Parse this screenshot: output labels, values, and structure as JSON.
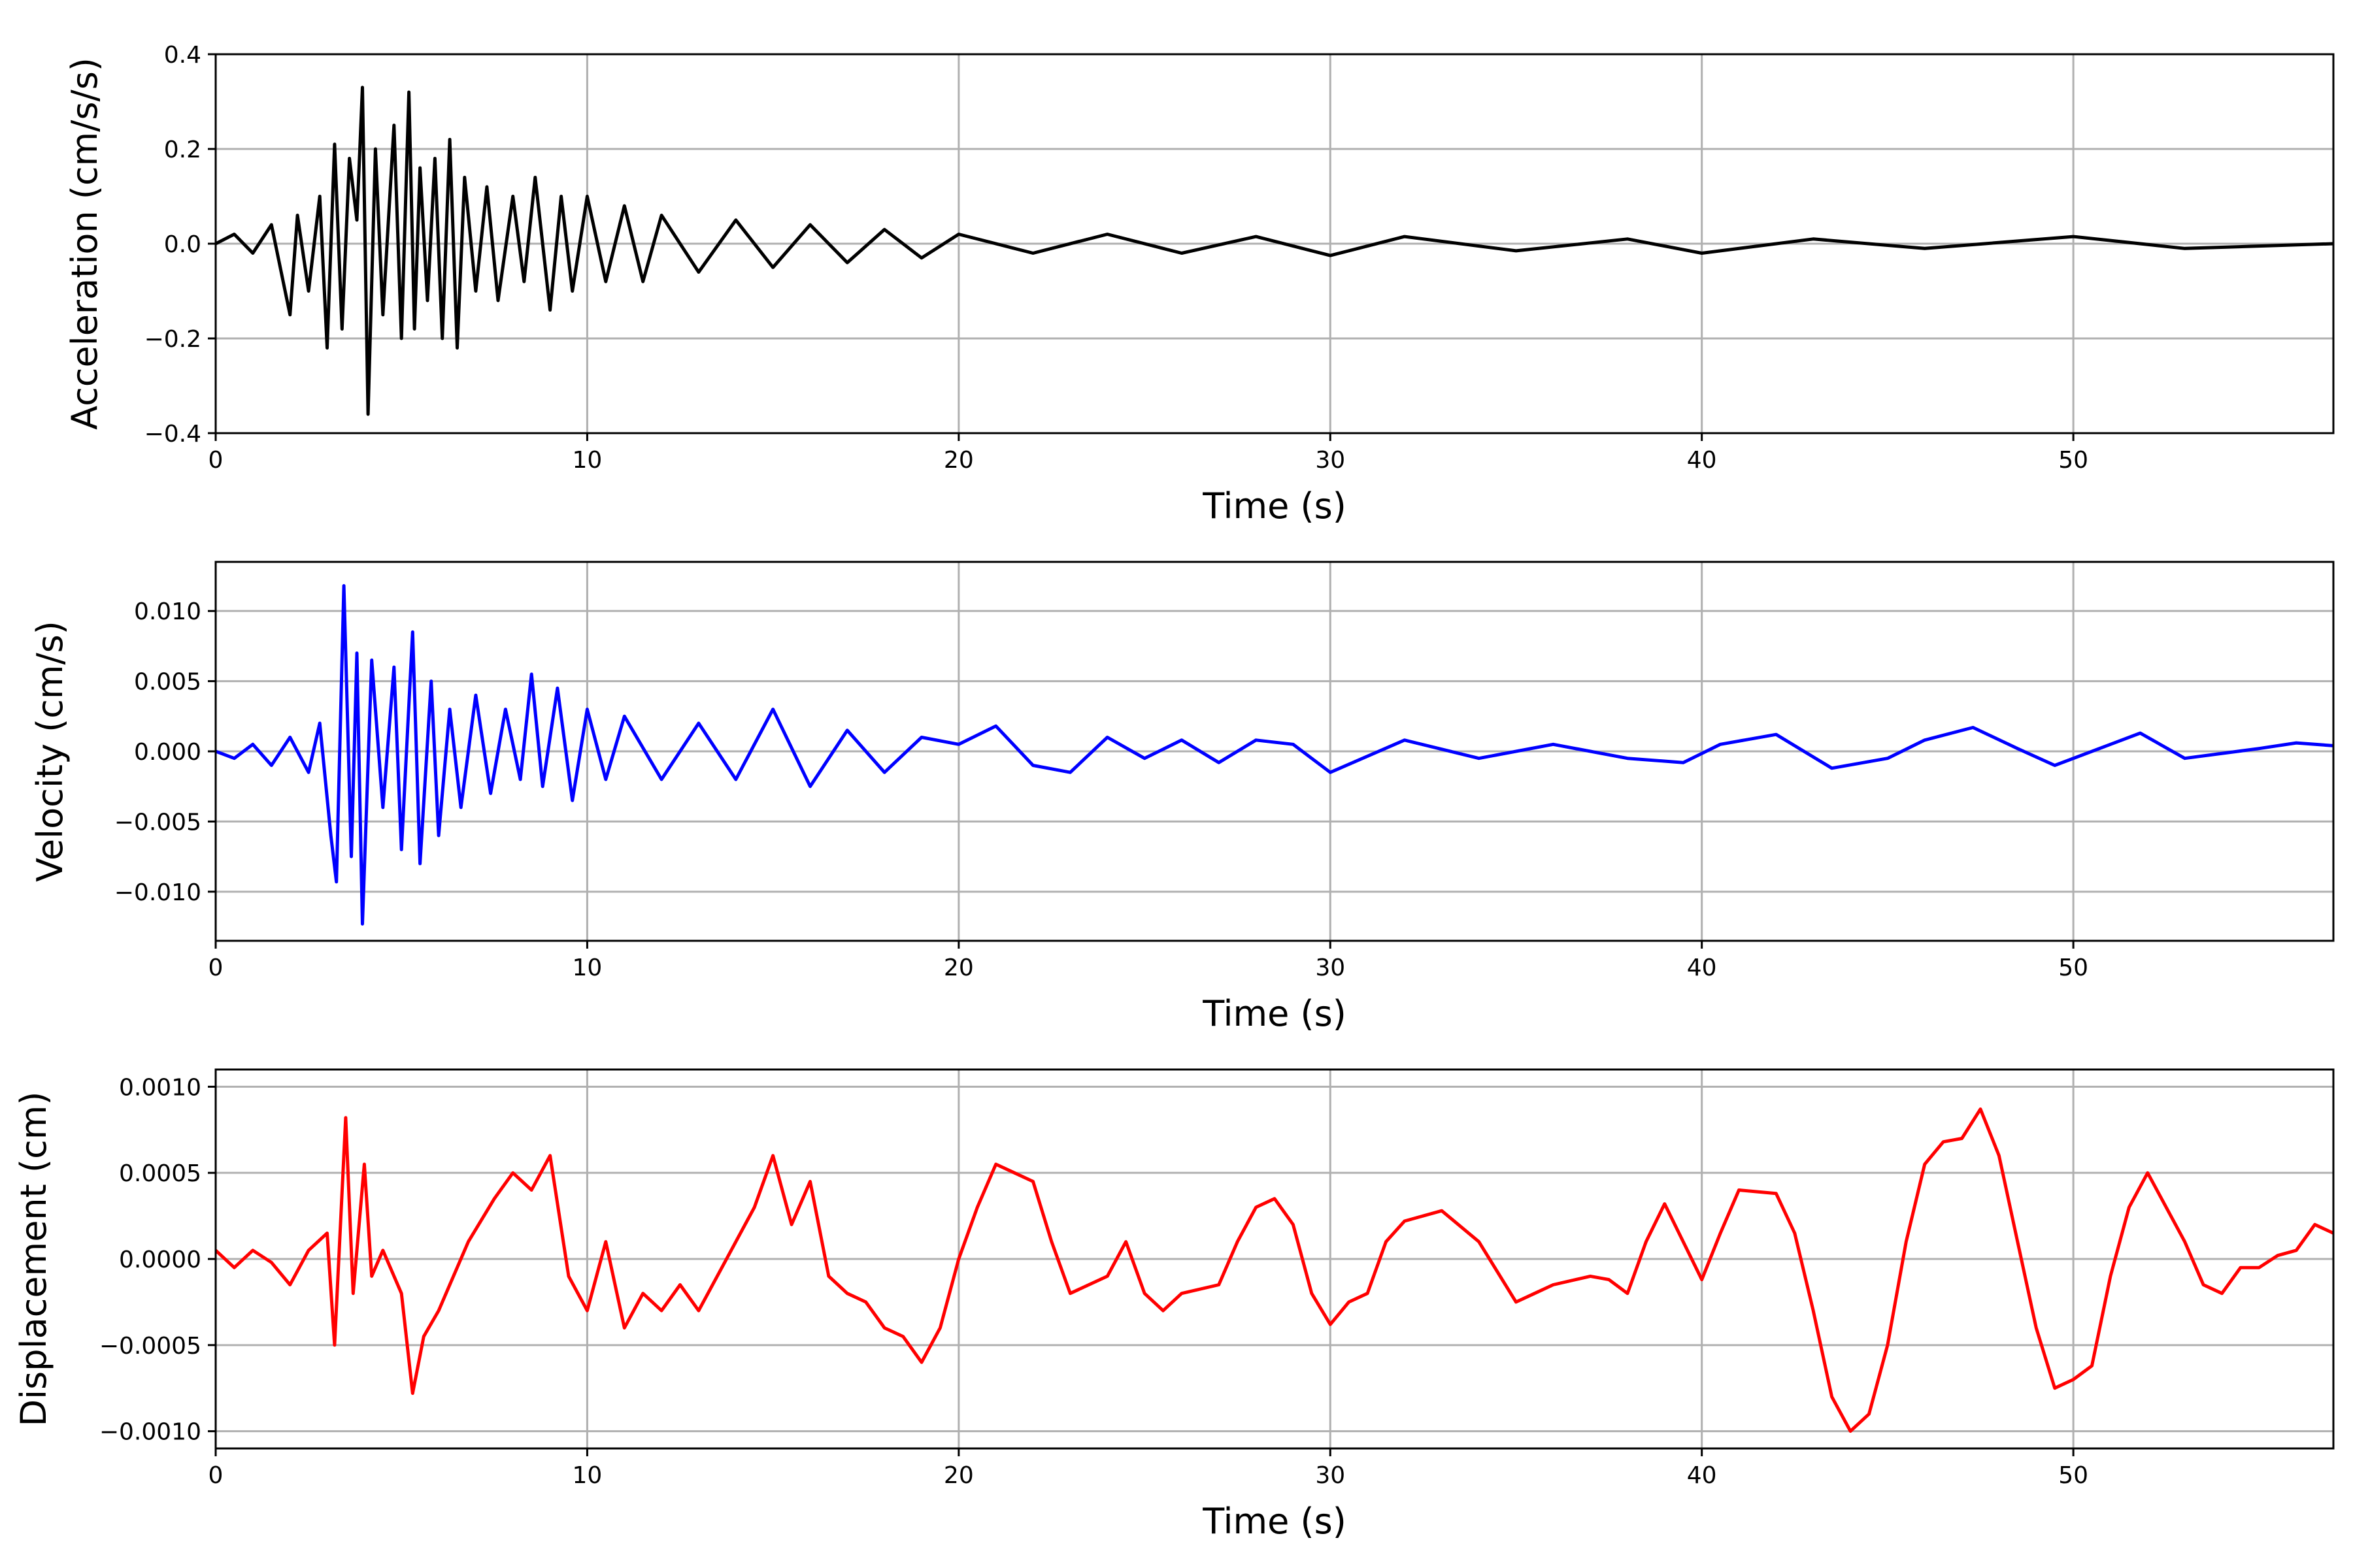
{
  "chart_data": [
    {
      "type": "line",
      "xlabel": "Time (s)",
      "ylabel": "Acceleration (cm/s/s)",
      "xlim": [
        0,
        57
      ],
      "ylim": [
        -0.4,
        0.4
      ],
      "xticks": [
        0,
        10,
        20,
        30,
        40,
        50
      ],
      "yticks": [
        -0.4,
        -0.2,
        0.0,
        0.2,
        0.4
      ],
      "ytick_labels": [
        "−0.4",
        "−0.2",
        "0.0",
        "0.2",
        "0.4"
      ],
      "grid": true,
      "color": "#000000",
      "series": [
        {
          "x": [
            0,
            0.5,
            1.0,
            1.5,
            2.0,
            2.2,
            2.5,
            2.8,
            3.0,
            3.2,
            3.4,
            3.6,
            3.8,
            3.95,
            4.1,
            4.3,
            4.5,
            4.8,
            5.0,
            5.2,
            5.35,
            5.5,
            5.7,
            5.9,
            6.1,
            6.3,
            6.5,
            6.7,
            7.0,
            7.3,
            7.6,
            8.0,
            8.3,
            8.6,
            9.0,
            9.3,
            9.6,
            10.0,
            10.5,
            11.0,
            11.5,
            12.0,
            13.0,
            14.0,
            15.0,
            16.0,
            17.0,
            18.0,
            19.0,
            20.0,
            22.0,
            24.0,
            26.0,
            28.0,
            30.0,
            32.0,
            35.0,
            38.0,
            40.0,
            43.0,
            46.0,
            50.0,
            53.0,
            57.0
          ],
          "y": [
            0.0,
            0.02,
            -0.02,
            0.04,
            -0.15,
            0.06,
            -0.1,
            0.1,
            -0.22,
            0.21,
            -0.18,
            0.18,
            0.05,
            0.33,
            -0.36,
            0.2,
            -0.15,
            0.25,
            -0.2,
            0.32,
            -0.18,
            0.16,
            -0.12,
            0.18,
            -0.2,
            0.22,
            -0.22,
            0.14,
            -0.1,
            0.12,
            -0.12,
            0.1,
            -0.08,
            0.14,
            -0.14,
            0.1,
            -0.1,
            0.1,
            -0.08,
            0.08,
            -0.08,
            0.06,
            -0.06,
            0.05,
            -0.05,
            0.04,
            -0.04,
            0.03,
            -0.03,
            0.02,
            -0.02,
            0.02,
            -0.02,
            0.015,
            -0.025,
            0.015,
            -0.015,
            0.01,
            -0.02,
            0.01,
            -0.01,
            0.015,
            -0.01,
            0.0
          ]
        }
      ]
    },
    {
      "type": "line",
      "xlabel": "Time (s)",
      "ylabel": "Velocity (cm/s)",
      "xlim": [
        0,
        57
      ],
      "ylim": [
        -0.0135,
        0.0135
      ],
      "xticks": [
        0,
        10,
        20,
        30,
        40,
        50
      ],
      "yticks": [
        -0.01,
        -0.005,
        0.0,
        0.005,
        0.01
      ],
      "ytick_labels": [
        "−0.010",
        "−0.005",
        "0.000",
        "0.005",
        "0.010"
      ],
      "grid": true,
      "color": "#0000ff",
      "series": [
        {
          "x": [
            0,
            0.5,
            1.0,
            1.5,
            2.0,
            2.5,
            2.8,
            3.1,
            3.25,
            3.45,
            3.65,
            3.8,
            3.95,
            4.2,
            4.5,
            4.8,
            5.0,
            5.3,
            5.5,
            5.8,
            6.0,
            6.3,
            6.6,
            7.0,
            7.4,
            7.8,
            8.2,
            8.5,
            8.8,
            9.2,
            9.6,
            10.0,
            10.5,
            11.0,
            12.0,
            13.0,
            14.0,
            15.0,
            16.0,
            17.0,
            18.0,
            19.0,
            20.0,
            21.0,
            22.0,
            23.0,
            24.0,
            25.0,
            26.0,
            27.0,
            28.0,
            29.0,
            30.0,
            32.0,
            34.0,
            36.0,
            38.0,
            39.5,
            40.5,
            42.0,
            43.5,
            45.0,
            46.0,
            47.3,
            48.5,
            49.5,
            51.0,
            51.8,
            53.0,
            55.0,
            56.0,
            57.0
          ],
          "y": [
            0.0,
            -0.0005,
            0.0005,
            -0.001,
            0.001,
            -0.0015,
            0.002,
            -0.006,
            -0.0093,
            0.0118,
            -0.0075,
            0.007,
            -0.0123,
            0.0065,
            -0.004,
            0.006,
            -0.007,
            0.0085,
            -0.008,
            0.005,
            -0.006,
            0.003,
            -0.004,
            0.004,
            -0.003,
            0.003,
            -0.002,
            0.0055,
            -0.0025,
            0.0045,
            -0.0035,
            0.003,
            -0.002,
            0.0025,
            -0.002,
            0.002,
            -0.002,
            0.003,
            -0.0025,
            0.0015,
            -0.0015,
            0.001,
            0.0005,
            0.0018,
            -0.001,
            -0.0015,
            0.001,
            -0.0005,
            0.0008,
            -0.0008,
            0.0008,
            0.0005,
            -0.0015,
            0.0008,
            -0.0005,
            0.0005,
            -0.0005,
            -0.0008,
            0.0005,
            0.0012,
            -0.0012,
            -0.0005,
            0.0008,
            0.0017,
            0.0002,
            -0.001,
            0.0005,
            0.0013,
            -0.0005,
            0.0002,
            0.0006,
            0.0004
          ]
        }
      ]
    },
    {
      "type": "line",
      "xlabel": "Time (s)",
      "ylabel": "Displacement (cm)",
      "xlim": [
        0,
        57
      ],
      "ylim": [
        -0.0011,
        0.0011
      ],
      "xticks": [
        0,
        10,
        20,
        30,
        40,
        50
      ],
      "yticks": [
        -0.001,
        -0.0005,
        0.0,
        0.0005,
        0.001
      ],
      "ytick_labels": [
        "−0.0010",
        "−0.0005",
        "0.0000",
        "0.0005",
        "0.0010"
      ],
      "grid": true,
      "color": "#ff0000",
      "series": [
        {
          "x": [
            0,
            0.5,
            1.0,
            1.5,
            2.0,
            2.5,
            3.0,
            3.2,
            3.5,
            3.7,
            4.0,
            4.2,
            4.5,
            5.0,
            5.3,
            5.6,
            6.0,
            6.3,
            6.8,
            7.5,
            8.0,
            8.5,
            9.0,
            9.5,
            10.0,
            10.5,
            11.0,
            11.5,
            12.0,
            12.5,
            13.0,
            14.0,
            14.5,
            15.0,
            15.5,
            16.0,
            16.5,
            17.0,
            17.5,
            18.0,
            18.5,
            19.0,
            19.5,
            20.0,
            20.5,
            21.0,
            21.5,
            22.0,
            22.5,
            23.0,
            24.0,
            24.5,
            25.0,
            25.5,
            26.0,
            27.0,
            27.5,
            28.0,
            28.5,
            29.0,
            29.5,
            30.0,
            30.5,
            31.0,
            31.5,
            32.0,
            33.0,
            34.0,
            35.0,
            35.5,
            36.0,
            37.0,
            37.5,
            38.0,
            38.5,
            39.0,
            40.0,
            40.5,
            41.0,
            42.0,
            42.5,
            43.0,
            43.5,
            44.0,
            44.5,
            45.0,
            45.5,
            46.0,
            46.5,
            47.0,
            47.5,
            48.0,
            48.5,
            49.0,
            49.5,
            50.0,
            50.5,
            51.0,
            51.5,
            52.0,
            52.5,
            53.0,
            53.5,
            54.0,
            54.5,
            55.0,
            55.5,
            56.0,
            56.5,
            57.0
          ],
          "y": [
            5e-05,
            -5e-05,
            5e-05,
            -2e-05,
            -0.00015,
            5e-05,
            0.00015,
            -0.0005,
            0.00082,
            -0.0002,
            0.00055,
            -0.0001,
            5e-05,
            -0.0002,
            -0.00078,
            -0.00045,
            -0.0003,
            -0.00015,
            0.0001,
            0.00035,
            0.0005,
            0.0004,
            0.0006,
            -0.0001,
            -0.0003,
            0.0001,
            -0.0004,
            -0.0002,
            -0.0003,
            -0.00015,
            -0.0003,
            0.0001,
            0.0003,
            0.0006,
            0.0002,
            0.00045,
            -0.0001,
            -0.0002,
            -0.00025,
            -0.0004,
            -0.00045,
            -0.0006,
            -0.0004,
            0.0,
            0.0003,
            0.00055,
            0.0005,
            0.00045,
            0.0001,
            -0.0002,
            -0.0001,
            0.0001,
            -0.0002,
            -0.0003,
            -0.0002,
            -0.00015,
            0.0001,
            0.0003,
            0.00035,
            0.0002,
            -0.0002,
            -0.00038,
            -0.00025,
            -0.0002,
            0.0001,
            0.00022,
            0.00028,
            0.0001,
            -0.00025,
            -0.0002,
            -0.00015,
            -0.0001,
            -0.00012,
            -0.0002,
            0.0001,
            0.00032,
            -0.00012,
            0.00015,
            0.0004,
            0.00038,
            0.00015,
            -0.0003,
            -0.0008,
            -0.001,
            -0.0009,
            -0.0005,
            0.0001,
            0.00055,
            0.00068,
            0.0007,
            0.00087,
            0.0006,
            0.0001,
            -0.0004,
            -0.00075,
            -0.0007,
            -0.00062,
            -0.0001,
            0.0003,
            0.0005,
            0.0003,
            0.0001,
            -0.00015,
            -0.0002,
            -5e-05,
            -5e-05,
            2e-05,
            5e-05,
            0.0002,
            0.00015
          ]
        }
      ]
    }
  ]
}
